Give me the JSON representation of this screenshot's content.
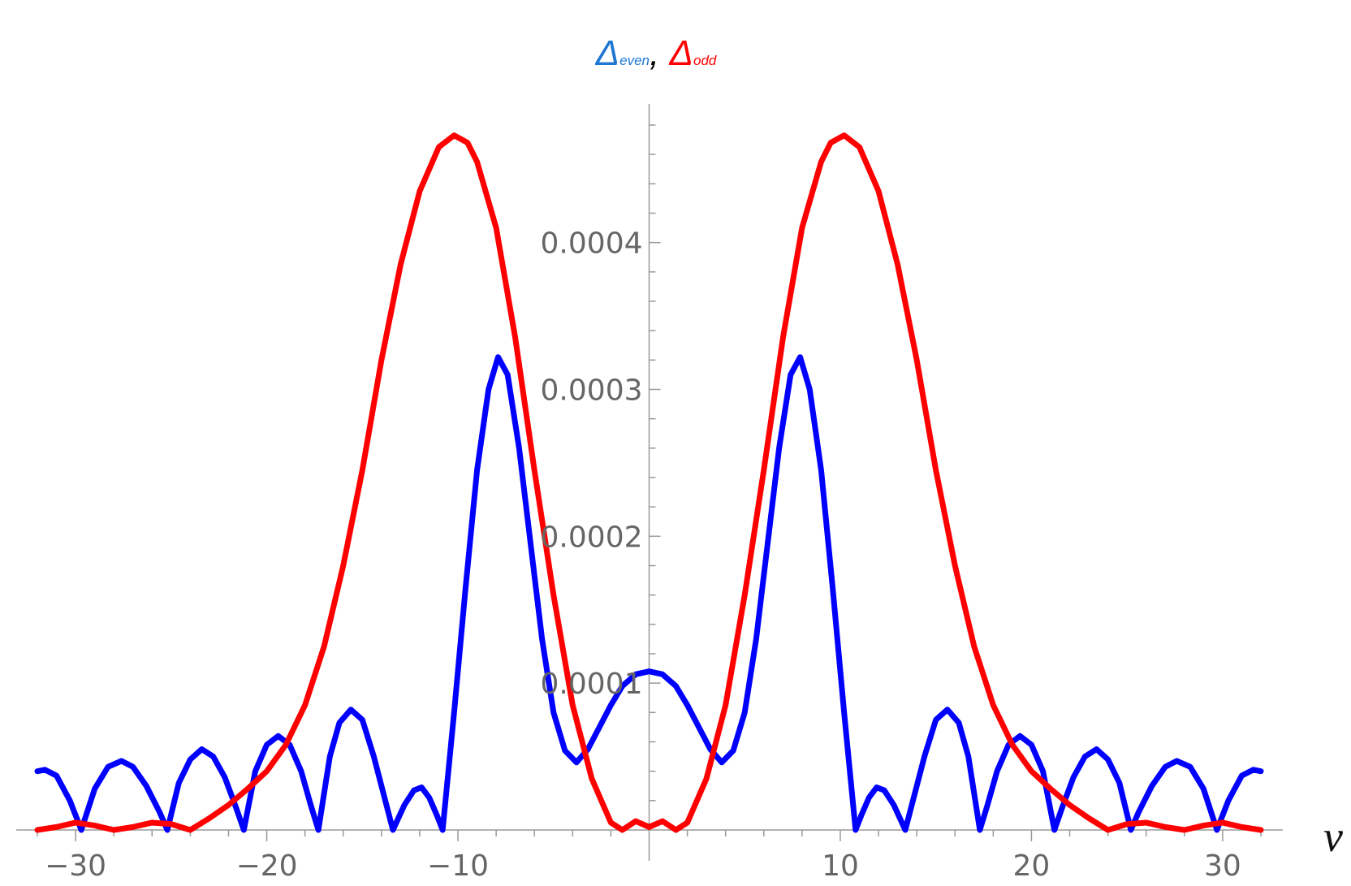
{
  "chart_data": {
    "type": "line",
    "xlabel": "ν",
    "ylabel_parts": [
      {
        "text": "Δ",
        "color": "#1f77d4"
      },
      {
        "text": "even",
        "color": "#1f77d4",
        "sub": true
      },
      {
        "text": ",",
        "color": "#000000"
      },
      {
        "text": " "
      },
      {
        "text": "Δ",
        "color": "#ff0000"
      },
      {
        "text": "odd",
        "color": "#ff0000",
        "sub": true
      }
    ],
    "xlim": [
      -32,
      32
    ],
    "ylim": [
      0,
      0.00048
    ],
    "x_ticks_major": [
      -30,
      -20,
      -10,
      10,
      20,
      30
    ],
    "x_tick_labels": [
      "−30",
      "−20",
      "−10",
      "10",
      "20",
      "30"
    ],
    "y_ticks_major": [
      0.0001,
      0.0002,
      0.0003,
      0.0004
    ],
    "y_tick_labels": [
      "0.0001",
      "0.0002",
      "0.0003",
      "0.0004"
    ],
    "grid": false,
    "series": [
      {
        "color": "#0000ff",
        "points": [
          [
            -32,
            4e-05
          ],
          [
            -31.6,
            4.1e-05
          ],
          [
            -31,
            3.7e-05
          ],
          [
            -30.3,
            2e-05
          ],
          [
            -29.7,
            0.0
          ],
          [
            -29,
            2.8e-05
          ],
          [
            -28.3,
            4.3e-05
          ],
          [
            -27.6,
            4.7e-05
          ],
          [
            -27,
            4.3e-05
          ],
          [
            -26.3,
            3e-05
          ],
          [
            -25.6,
            1.2e-05
          ],
          [
            -25.2,
            0.0
          ],
          [
            -24.6,
            3.2e-05
          ],
          [
            -24,
            4.8e-05
          ],
          [
            -23.4,
            5.5e-05
          ],
          [
            -22.8,
            5e-05
          ],
          [
            -22.2,
            3.6e-05
          ],
          [
            -21.6,
            1.5e-05
          ],
          [
            -21.2,
            0.0
          ],
          [
            -20.6,
            4e-05
          ],
          [
            -20,
            5.8e-05
          ],
          [
            -19.4,
            6.4e-05
          ],
          [
            -18.8,
            5.8e-05
          ],
          [
            -18.2,
            4e-05
          ],
          [
            -17.7,
            1.7e-05
          ],
          [
            -17.3,
            0.0
          ],
          [
            -16.7,
            5e-05
          ],
          [
            -16.2,
            7.3e-05
          ],
          [
            -15.6,
            8.2e-05
          ],
          [
            -15,
            7.5e-05
          ],
          [
            -14.4,
            5e-05
          ],
          [
            -13.8,
            2e-05
          ],
          [
            -13.4,
            0.0
          ],
          [
            -12.8,
            1.7e-05
          ],
          [
            -12.3,
            2.7e-05
          ],
          [
            -11.9,
            2.9e-05
          ],
          [
            -11.5,
            2.2e-05
          ],
          [
            -11.1,
            1e-05
          ],
          [
            -10.8,
            0.0
          ],
          [
            -10.2,
            8e-05
          ],
          [
            -9.6,
            0.000165
          ],
          [
            -9,
            0.000245
          ],
          [
            -8.4,
            0.0003
          ],
          [
            -7.9,
            0.000322
          ],
          [
            -7.4,
            0.00031
          ],
          [
            -6.8,
            0.00026
          ],
          [
            -6.2,
            0.000195
          ],
          [
            -5.6,
            0.00013
          ],
          [
            -5,
            8e-05
          ],
          [
            -4.4,
            5.4e-05
          ],
          [
            -3.8,
            4.6e-05
          ],
          [
            -3.2,
            5.5e-05
          ],
          [
            -2.6,
            7e-05
          ],
          [
            -2,
            8.5e-05
          ],
          [
            -1.4,
            9.8e-05
          ],
          [
            -0.7,
            0.000106
          ],
          [
            0,
            0.000108
          ],
          [
            0.7,
            0.000106
          ],
          [
            1.4,
            9.8e-05
          ],
          [
            2,
            8.5e-05
          ],
          [
            2.6,
            7e-05
          ],
          [
            3.2,
            5.5e-05
          ],
          [
            3.8,
            4.6e-05
          ],
          [
            4.4,
            5.4e-05
          ],
          [
            5,
            8e-05
          ],
          [
            5.6,
            0.00013
          ],
          [
            6.2,
            0.000195
          ],
          [
            6.8,
            0.00026
          ],
          [
            7.4,
            0.00031
          ],
          [
            7.9,
            0.000322
          ],
          [
            8.4,
            0.0003
          ],
          [
            9,
            0.000245
          ],
          [
            9.6,
            0.000165
          ],
          [
            10.2,
            8e-05
          ],
          [
            10.8,
            0.0
          ],
          [
            11.1,
            1e-05
          ],
          [
            11.5,
            2.2e-05
          ],
          [
            11.9,
            2.9e-05
          ],
          [
            12.3,
            2.7e-05
          ],
          [
            12.8,
            1.7e-05
          ],
          [
            13.4,
            0.0
          ],
          [
            13.8,
            2e-05
          ],
          [
            14.4,
            5e-05
          ],
          [
            15,
            7.5e-05
          ],
          [
            15.6,
            8.2e-05
          ],
          [
            16.2,
            7.3e-05
          ],
          [
            16.7,
            5e-05
          ],
          [
            17.3,
            0.0
          ],
          [
            17.7,
            1.7e-05
          ],
          [
            18.2,
            4e-05
          ],
          [
            18.8,
            5.8e-05
          ],
          [
            19.4,
            6.4e-05
          ],
          [
            20,
            5.8e-05
          ],
          [
            20.6,
            4e-05
          ],
          [
            21.2,
            0.0
          ],
          [
            21.6,
            1.5e-05
          ],
          [
            22.2,
            3.6e-05
          ],
          [
            22.8,
            5e-05
          ],
          [
            23.4,
            5.5e-05
          ],
          [
            24,
            4.8e-05
          ],
          [
            24.6,
            3.2e-05
          ],
          [
            25.2,
            0.0
          ],
          [
            25.6,
            1.2e-05
          ],
          [
            26.3,
            3e-05
          ],
          [
            27,
            4.3e-05
          ],
          [
            27.6,
            4.7e-05
          ],
          [
            28.3,
            4.3e-05
          ],
          [
            29,
            2.8e-05
          ],
          [
            29.7,
            0.0
          ],
          [
            30.3,
            2e-05
          ],
          [
            31,
            3.7e-05
          ],
          [
            31.6,
            4.1e-05
          ],
          [
            32,
            4e-05
          ]
        ]
      },
      {
        "color": "#ff0000",
        "points": [
          [
            -32,
            0.0
          ],
          [
            -31,
            2e-06
          ],
          [
            -30,
            5e-06
          ],
          [
            -29,
            3e-06
          ],
          [
            -28,
            0.0
          ],
          [
            -27,
            2e-06
          ],
          [
            -26,
            5e-06
          ],
          [
            -25,
            4e-06
          ],
          [
            -24,
            0.0
          ],
          [
            -23,
            8e-06
          ],
          [
            -22,
            1.7e-05
          ],
          [
            -21,
            2.8e-05
          ],
          [
            -20,
            4e-05
          ],
          [
            -19,
            5.8e-05
          ],
          [
            -18,
            8.5e-05
          ],
          [
            -17,
            0.000125
          ],
          [
            -16,
            0.00018
          ],
          [
            -15,
            0.000245
          ],
          [
            -14,
            0.00032
          ],
          [
            -13,
            0.000385
          ],
          [
            -12,
            0.000435
          ],
          [
            -11,
            0.000465
          ],
          [
            -10.2,
            0.000473
          ],
          [
            -9.5,
            0.000468
          ],
          [
            -9,
            0.000455
          ],
          [
            -8,
            0.00041
          ],
          [
            -7,
            0.000335
          ],
          [
            -6,
            0.000245
          ],
          [
            -5,
            0.00016
          ],
          [
            -4,
            8.5e-05
          ],
          [
            -3,
            3.5e-05
          ],
          [
            -2,
            5e-06
          ],
          [
            -1.4,
            0.0
          ],
          [
            -0.7,
            6e-06
          ],
          [
            0,
            2e-06
          ],
          [
            0.7,
            6e-06
          ],
          [
            1.4,
            0.0
          ],
          [
            2,
            5e-06
          ],
          [
            3,
            3.5e-05
          ],
          [
            4,
            8.5e-05
          ],
          [
            5,
            0.00016
          ],
          [
            6,
            0.000245
          ],
          [
            7,
            0.000335
          ],
          [
            8,
            0.00041
          ],
          [
            9,
            0.000455
          ],
          [
            9.5,
            0.000468
          ],
          [
            10.2,
            0.000473
          ],
          [
            11,
            0.000465
          ],
          [
            12,
            0.000435
          ],
          [
            13,
            0.000385
          ],
          [
            14,
            0.00032
          ],
          [
            15,
            0.000245
          ],
          [
            16,
            0.00018
          ],
          [
            17,
            0.000125
          ],
          [
            18,
            8.5e-05
          ],
          [
            19,
            5.8e-05
          ],
          [
            20,
            4e-05
          ],
          [
            21,
            2.8e-05
          ],
          [
            22,
            1.7e-05
          ],
          [
            23,
            8e-06
          ],
          [
            24,
            0.0
          ],
          [
            25,
            4e-06
          ],
          [
            26,
            5e-06
          ],
          [
            27,
            2e-06
          ],
          [
            28,
            0.0
          ],
          [
            29,
            3e-06
          ],
          [
            30,
            5e-06
          ],
          [
            31,
            2e-06
          ],
          [
            32,
            0.0
          ]
        ]
      }
    ]
  }
}
